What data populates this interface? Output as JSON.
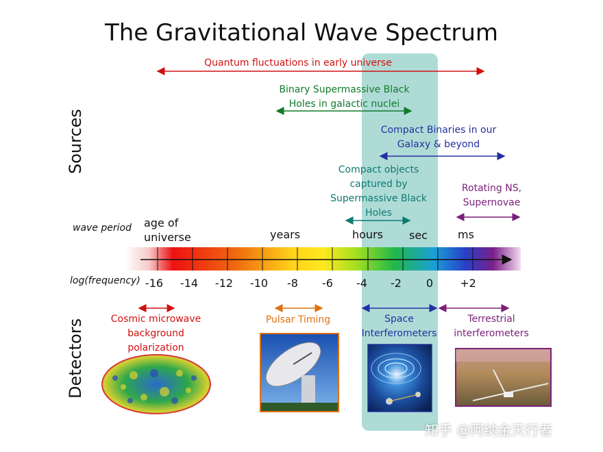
{
  "title": "The Gravitational Wave Spectrum",
  "sections": {
    "sources": "Sources",
    "detectors": "Detectors"
  },
  "axis": {
    "period_label": "wave period",
    "freq_label": "log(frequency)",
    "periods": [
      "age of universe",
      "years",
      "hours",
      "sec",
      "ms"
    ],
    "ticks": [
      "-16",
      "-14",
      "-12",
      "-10",
      "-8",
      "-6",
      "-4",
      "-2",
      "0",
      "+2"
    ]
  },
  "sources": [
    {
      "label": "Quantum fluctuations in early universe",
      "color": "#d01010"
    },
    {
      "label_l1": "Binary Supermassive Black",
      "label_l2": "Holes in galactic nuclei",
      "color": "#107a2a"
    },
    {
      "label_l1": "Compact Binaries in our",
      "label_l2": "Galaxy & beyond",
      "color": "#2330a0"
    },
    {
      "label_l1": "Compact objects",
      "label_l2": "captured by",
      "label_l3": "Supermassive Black",
      "label_l4": "Holes",
      "color": "#0e7a70"
    },
    {
      "label_l1": "Rotating NS,",
      "label_l2": "Supernovae",
      "color": "#7a1f7a"
    }
  ],
  "detectors": [
    {
      "label_l1": "Cosmic microwave",
      "label_l2": "background",
      "label_l3": "polarization",
      "color": "#d01010"
    },
    {
      "label": "Pulsar Timing",
      "color": "#e07010"
    },
    {
      "label_l1": "Space",
      "label_l2": "Interferometers",
      "color": "#2330a0"
    },
    {
      "label_l1": "Terrestrial",
      "label_l2": "interferometers",
      "color": "#7a1f7a"
    }
  ],
  "watermark": "知乎 @阿纳金天行者"
}
